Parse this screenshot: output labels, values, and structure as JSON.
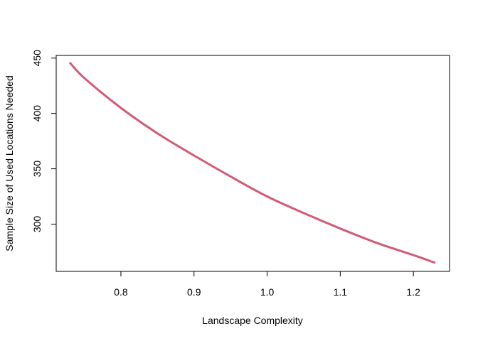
{
  "chart_data": {
    "type": "line",
    "title": "",
    "xlabel": "Landscape Complexity",
    "ylabel": "Sample Size of Used Locations Needed",
    "xlim": [
      0.73,
      1.23
    ],
    "ylim": [
      265,
      446
    ],
    "x_ticks": [
      0.8,
      0.9,
      1.0,
      1.1,
      1.2
    ],
    "x_tick_labels": [
      "0.8",
      "0.9",
      "1.0",
      "1.1",
      "1.2"
    ],
    "y_ticks": [
      300,
      350,
      400,
      450
    ],
    "y_tick_labels": [
      "300",
      "350",
      "400",
      "450"
    ],
    "grid": false,
    "legend": "none",
    "series": [
      {
        "color": "#d35a76",
        "x": [
          0.73,
          0.75,
          0.8,
          0.85,
          0.9,
          0.95,
          1.0,
          1.05,
          1.1,
          1.15,
          1.2,
          1.23
        ],
        "y": [
          446,
          432,
          405,
          382,
          362,
          343,
          325,
          310,
          296,
          283,
          272,
          265
        ]
      }
    ]
  }
}
